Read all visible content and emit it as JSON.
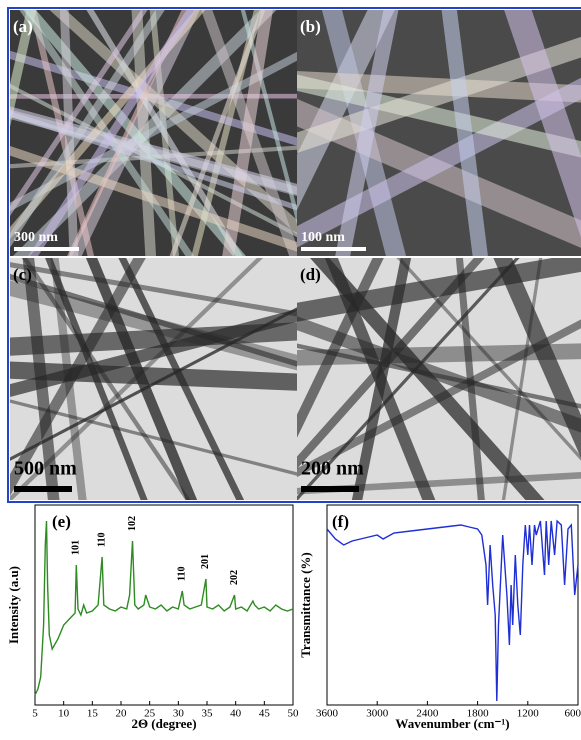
{
  "panels": [
    {
      "label": "(a)",
      "scale_bar": "300 nm"
    },
    {
      "label": "(b)",
      "scale_bar": "100 nm"
    },
    {
      "label": "(c)",
      "scale_bar": "500 nm"
    },
    {
      "label": "(d)",
      "scale_bar": "200 nm"
    }
  ],
  "chart_data": [
    {
      "type": "line",
      "panel_label": "(e)",
      "x_label": "2Θ (degree)",
      "y_label": "Intensity (a.u)",
      "color": "#2e8b22",
      "x": [
        5,
        5.5,
        6,
        6.5,
        6.8,
        7,
        7.2,
        7.5,
        8,
        9,
        10,
        11,
        12,
        12.2,
        12.5,
        13,
        13.5,
        14,
        15,
        16,
        16.7,
        17,
        18,
        19,
        20,
        21,
        21.5,
        22,
        22.4,
        23,
        24,
        24.3,
        25,
        26,
        27,
        28,
        29,
        30,
        30.7,
        31,
        32,
        33,
        34,
        34.8,
        35,
        36,
        37,
        38,
        39,
        39.8,
        40,
        41,
        42,
        43,
        43.3,
        44,
        45,
        46,
        47,
        48,
        49,
        50
      ],
      "values": [
        5,
        8,
        14,
        40,
        80,
        92,
        60,
        35,
        28,
        33,
        40,
        43,
        46,
        70,
        48,
        45,
        50,
        46,
        47,
        50,
        74,
        50,
        48,
        47,
        49,
        48,
        55,
        82,
        50,
        48,
        50,
        55,
        49,
        48,
        50,
        47,
        49,
        48,
        57,
        50,
        48,
        49,
        50,
        63,
        49,
        48,
        50,
        47,
        49,
        55,
        48,
        49,
        47,
        52,
        50,
        48,
        49,
        47,
        50,
        48,
        47,
        48
      ],
      "xlim": [
        5,
        50
      ],
      "xticks": [
        5,
        10,
        15,
        20,
        25,
        30,
        35,
        40,
        45,
        50
      ],
      "ylim": [
        0,
        100
      ],
      "annotations": [
        {
          "label": "101",
          "x": 12.2,
          "y": 75
        },
        {
          "label": "110",
          "x": 16.7,
          "y": 79
        },
        {
          "label": "102",
          "x": 22,
          "y": 87
        },
        {
          "label": "110",
          "x": 30.7,
          "y": 62
        },
        {
          "label": "201",
          "x": 34.8,
          "y": 68
        },
        {
          "label": "202",
          "x": 39.8,
          "y": 60
        }
      ]
    },
    {
      "type": "line",
      "panel_label": "(f)",
      "x_label": "Wavenumber (cm⁻¹)",
      "y_label": "Transmittance (%)",
      "color": "#1f2fd6",
      "x": [
        3600,
        3500,
        3400,
        3300,
        3200,
        3000,
        2930,
        2800,
        2600,
        2400,
        2200,
        2000,
        1900,
        1800,
        1750,
        1700,
        1680,
        1650,
        1620,
        1590,
        1570,
        1550,
        1500,
        1450,
        1420,
        1400,
        1380,
        1350,
        1320,
        1290,
        1260,
        1230,
        1200,
        1180,
        1150,
        1120,
        1100,
        1050,
        1000,
        980,
        950,
        920,
        880,
        850,
        800,
        760,
        720,
        680,
        640,
        600
      ],
      "values": [
        88,
        83,
        80,
        82,
        83,
        85,
        83,
        86,
        87,
        88,
        89,
        90,
        89,
        88,
        85,
        70,
        50,
        80,
        60,
        45,
        2,
        40,
        85,
        55,
        30,
        60,
        40,
        75,
        50,
        35,
        70,
        90,
        75,
        90,
        70,
        90,
        85,
        92,
        65,
        92,
        70,
        92,
        75,
        92,
        90,
        60,
        88,
        90,
        55,
        70
      ],
      "xlim": [
        3600,
        600
      ],
      "xticks": [
        3600,
        3000,
        2400,
        1800,
        1200,
        600
      ],
      "ylim": [
        0,
        100
      ]
    }
  ]
}
